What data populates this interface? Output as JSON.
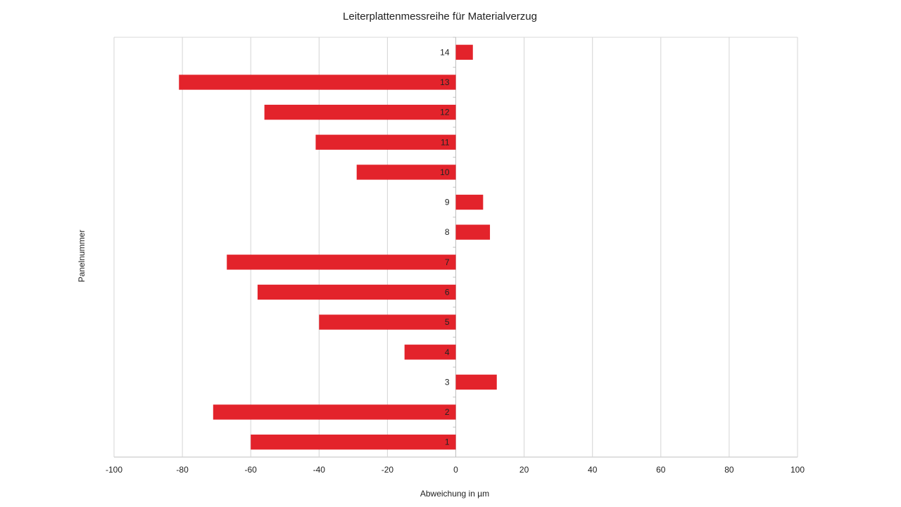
{
  "chart_data": {
    "type": "bar",
    "orientation": "horizontal",
    "title": "Leiterplattenmessreihe für Materialverzug",
    "xlabel": "Abweichung in µm",
    "ylabel": "Panelnummer",
    "categories": [
      "1",
      "2",
      "3",
      "4",
      "5",
      "6",
      "7",
      "8",
      "9",
      "10",
      "11",
      "12",
      "13",
      "14"
    ],
    "series": [
      {
        "values": [
          -60,
          -71,
          12,
          -15,
          -40,
          -58,
          -67,
          10,
          8,
          -29,
          -41,
          -56,
          -81,
          5
        ],
        "color": "#e3232b"
      }
    ],
    "xlim": [
      -100,
      100
    ],
    "xticks": [
      "-100",
      "-80",
      "-60",
      "-40",
      "-20",
      "0",
      "20",
      "40",
      "60",
      "80",
      "100"
    ],
    "grid": "vertical",
    "legend": "none"
  }
}
